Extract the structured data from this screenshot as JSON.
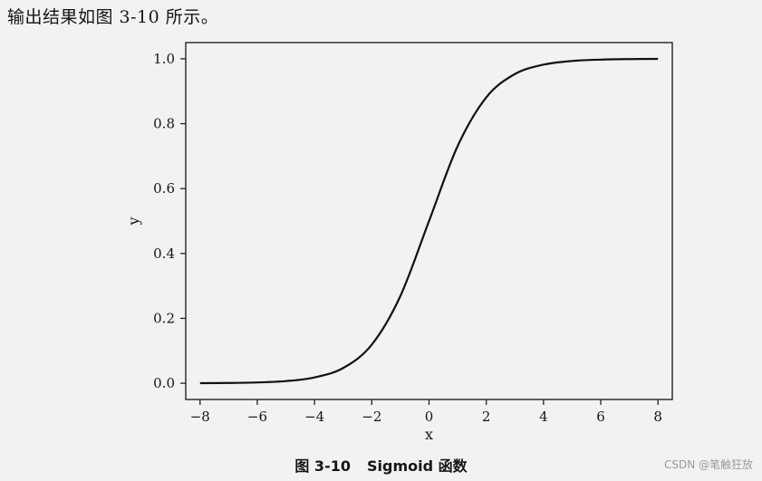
{
  "intro_text": "输出结果如图 3-10 所示。",
  "caption": {
    "number": "图 3-10",
    "title": "Sigmoid 函数"
  },
  "watermark": "CSDN @笔触狂放",
  "colors": {
    "background": "#f2f2f2",
    "line": "#111111",
    "axes": "#222222"
  },
  "chart_data": {
    "type": "line",
    "title": "",
    "xlabel": "x",
    "ylabel": "y",
    "xlim": [
      -8.5,
      8.5
    ],
    "ylim": [
      -0.05,
      1.05
    ],
    "xticks": [
      -8,
      -6,
      -4,
      -2,
      0,
      2,
      4,
      6,
      8
    ],
    "xtick_labels": [
      "−8",
      "−6",
      "−4",
      "−2",
      "0",
      "2",
      "4",
      "6",
      "8"
    ],
    "yticks": [
      0.0,
      0.2,
      0.4,
      0.6,
      0.8,
      1.0
    ],
    "ytick_labels": [
      "0.0",
      "0.2",
      "0.4",
      "0.6",
      "0.8",
      "1.0"
    ],
    "grid": false,
    "legend": "none",
    "series": [
      {
        "x": [
          -8,
          -7,
          -6,
          -5,
          -4,
          -3,
          -2,
          -1,
          0,
          1,
          2,
          3,
          4,
          5,
          6,
          7,
          8
        ],
        "y": [
          0.0003,
          0.0009,
          0.0025,
          0.0067,
          0.018,
          0.047,
          0.119,
          0.269,
          0.5,
          0.731,
          0.881,
          0.953,
          0.982,
          0.9933,
          0.9975,
          0.9991,
          0.9997
        ]
      }
    ]
  }
}
